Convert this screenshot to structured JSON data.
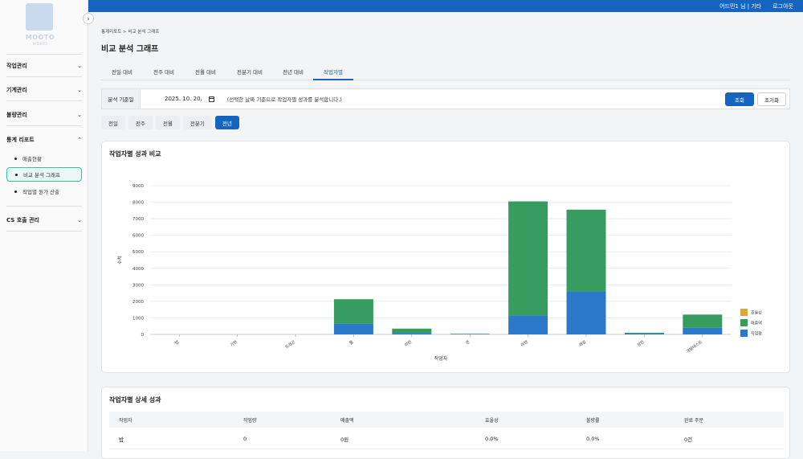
{
  "topbar": {
    "user": "어드민1 님 | 기타",
    "logout": "로그아웃"
  },
  "logo": {
    "text": "MOOTO",
    "sub": "WORKS"
  },
  "sidebar": {
    "sections": [
      {
        "label": "작업관리"
      },
      {
        "label": "기계관리"
      },
      {
        "label": "불량관리"
      },
      {
        "label": "통계 리포트"
      },
      {
        "label": "CS 호출 관리"
      }
    ],
    "sub_items": [
      {
        "label": "매출현황"
      },
      {
        "label": "비교 분석 그래프"
      },
      {
        "label": "작업별 원가 산출"
      }
    ]
  },
  "breadcrumb": "통계리포트 > 비교 분석 그래프",
  "page_title": "비교 분석 그래프",
  "tabs": [
    "전일 대비",
    "전주 대비",
    "전월 대비",
    "전분기 대비",
    "전년 대비",
    "작업자별"
  ],
  "filter": {
    "label": "분석 기준일",
    "date": "2025. 10. 20.",
    "hint": "(선택한 날짜 기준으로 작업자별 성과를 분석합니다.)",
    "search": "조회",
    "reset": "초기화"
  },
  "periods": [
    "전일",
    "전주",
    "전월",
    "전분기",
    "전년"
  ],
  "chart_card_title": "작업자별 성과 비교",
  "chart_data": {
    "type": "bar",
    "stacked": true,
    "categories": [
      "밥",
      "기현",
      "드래곤",
      "톰",
      "이런",
      "큰",
      "라텐",
      "레일",
      "성민",
      "개발테스트"
    ],
    "series": [
      {
        "name": "작업량",
        "color": "#2c78c9",
        "values": [
          0,
          0,
          0,
          650,
          80,
          20,
          1150,
          2600,
          50,
          400
        ]
      },
      {
        "name": "매출액",
        "color": "#379c5f",
        "values": [
          0,
          0,
          0,
          1480,
          270,
          20,
          6900,
          4950,
          50,
          800
        ]
      },
      {
        "name": "효율성",
        "color": "#d9a640",
        "values": [
          0,
          0,
          0,
          0,
          0,
          0,
          0,
          0,
          0,
          0
        ]
      }
    ],
    "legend_order": [
      "효율성",
      "매출액",
      "작업량"
    ],
    "xlabel": "작업자",
    "ylabel": "수치",
    "ylim": [
      0,
      9000
    ],
    "yticks": [
      0,
      1000,
      2000,
      3000,
      4000,
      5000,
      6000,
      7000,
      8000,
      9000
    ],
    "legend": "right",
    "grid": true
  },
  "detail_card_title": "작업자별 상세 성과",
  "detail_table": {
    "headers": [
      "작업자",
      "작업량",
      "매출액",
      "효율성",
      "불량률",
      "완료 주문"
    ],
    "rows": [
      [
        "밥",
        "0",
        "0원",
        "0.0%",
        "0.0%",
        "0건"
      ]
    ]
  }
}
